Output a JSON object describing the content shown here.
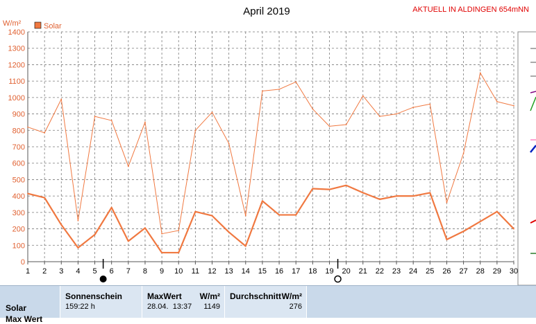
{
  "header": {
    "title": "April 2019",
    "station": "AKTUELL IN ALDINGEN 654mNN"
  },
  "chart_data": {
    "type": "line",
    "title": "April 2019",
    "ylabel": "W/m²",
    "ylim": [
      0,
      1400
    ],
    "yticks": [
      0,
      100,
      200,
      300,
      400,
      500,
      600,
      700,
      800,
      900,
      1000,
      1100,
      1200,
      1300,
      1400
    ],
    "x": [
      1,
      2,
      3,
      4,
      5,
      6,
      7,
      8,
      9,
      10,
      11,
      12,
      13,
      14,
      15,
      16,
      17,
      18,
      19,
      20,
      21,
      22,
      23,
      24,
      25,
      26,
      27,
      28,
      29,
      30
    ],
    "xlim": [
      1,
      30
    ],
    "grid": true,
    "legend": "top-left",
    "series": [
      {
        "name": "Solar",
        "kind": "max",
        "color": "#f07840",
        "values": [
          820,
          785,
          990,
          250,
          885,
          860,
          580,
          850,
          170,
          190,
          800,
          910,
          720,
          280,
          1040,
          1050,
          1095,
          930,
          825,
          835,
          1010,
          885,
          900,
          940,
          960,
          360,
          660,
          1150,
          975,
          950
        ]
      },
      {
        "name": "Solar",
        "kind": "avg",
        "color": "#f07840",
        "values": [
          415,
          390,
          225,
          85,
          165,
          330,
          125,
          205,
          55,
          55,
          305,
          280,
          180,
          95,
          370,
          285,
          285,
          445,
          440,
          465,
          420,
          380,
          400,
          400,
          420,
          135,
          185,
          245,
          305,
          200
        ]
      }
    ],
    "markers": [
      {
        "x": 5.5,
        "symbol": "new-moon"
      },
      {
        "x": 19.5,
        "symbol": "full-moon"
      }
    ]
  },
  "legend": {
    "label": "Solar",
    "color": "#f07840"
  },
  "table": {
    "row_label": "Solar",
    "row_label_2": "Max Wert",
    "sonnenschein_header": "Sonnenschein",
    "sonnenschein_value": "159:22 h",
    "maxwert_header": "MaxWert",
    "maxwert_unit": "W/m²",
    "maxwert_date": "28.04.  13:37",
    "maxwert_value": "1149",
    "durchschnitt_header": "Durchschnitt",
    "durchschnitt_unit": "W/m²",
    "durchschnitt_value": "276"
  }
}
